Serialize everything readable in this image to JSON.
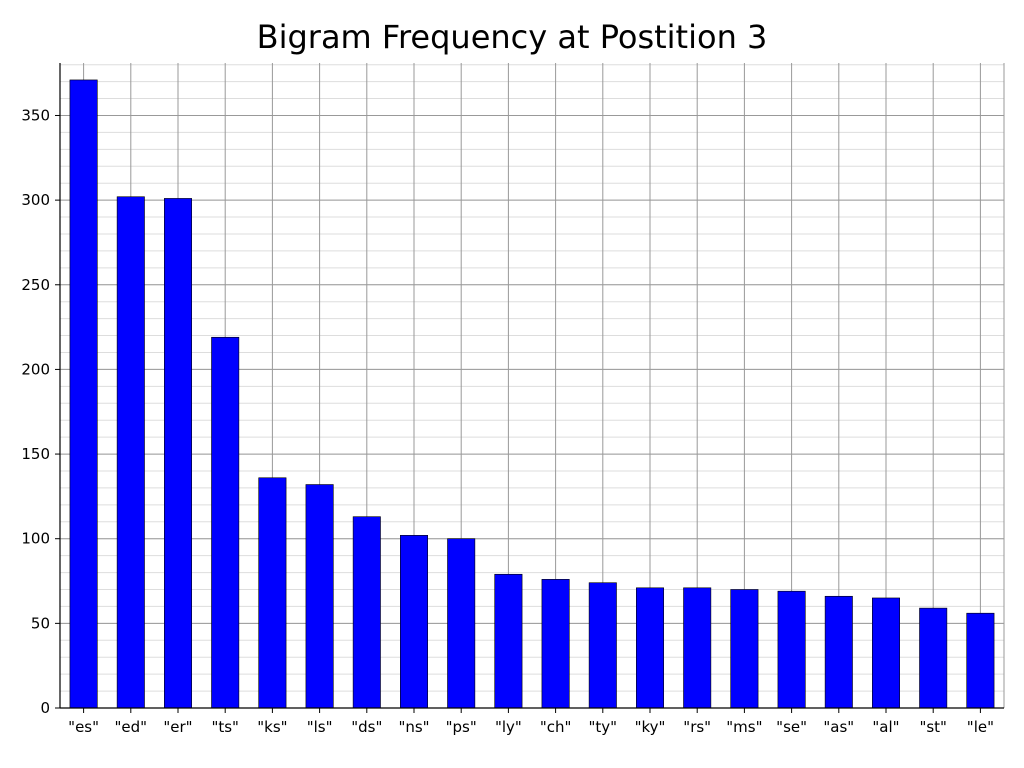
{
  "chart_data": {
    "type": "bar",
    "title": "Bigram Frequency at Postition 3",
    "xlabel": "",
    "ylabel": "",
    "categories": [
      "\"es\"",
      "\"ed\"",
      "\"er\"",
      "\"ts\"",
      "\"ks\"",
      "\"ls\"",
      "\"ds\"",
      "\"ns\"",
      "\"ps\"",
      "\"ly\"",
      "\"ch\"",
      "\"ty\"",
      "\"ky\"",
      "\"rs\"",
      "\"ms\"",
      "\"se\"",
      "\"as\"",
      "\"al\"",
      "\"st\"",
      "\"le\""
    ],
    "values": [
      371,
      302,
      301,
      219,
      136,
      132,
      113,
      102,
      100,
      79,
      76,
      74,
      71,
      71,
      70,
      69,
      66,
      65,
      59,
      56
    ],
    "ylim": [
      0,
      381
    ],
    "yticks": [
      0,
      50,
      100,
      150,
      200,
      250,
      300,
      350
    ],
    "minor_grid_step": 10,
    "grid": true,
    "bar_color": "#0000ff",
    "bar_edge_color": "#000000",
    "major_grid_color": "#999999",
    "minor_grid_color": "#dddddd"
  }
}
